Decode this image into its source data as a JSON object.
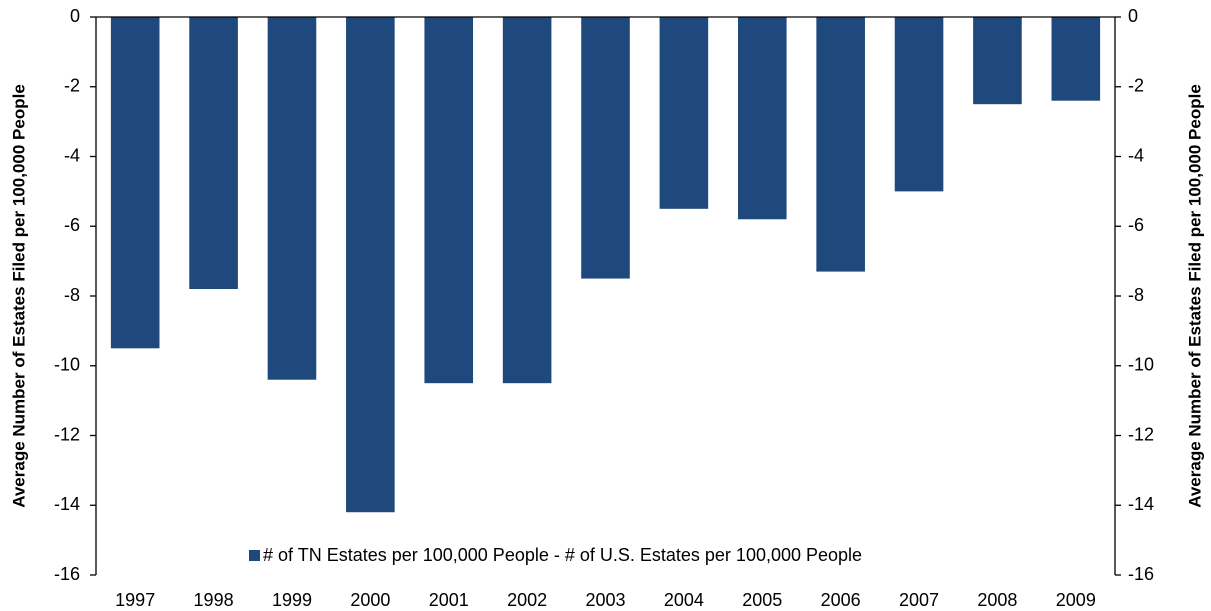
{
  "chart_data": {
    "type": "bar",
    "categories": [
      "1997",
      "1998",
      "1999",
      "2000",
      "2001",
      "2002",
      "2003",
      "2004",
      "2005",
      "2006",
      "2007",
      "2008",
      "2009"
    ],
    "series": [
      {
        "name": "# of TN Estates per 100,000 People - # of U.S. Estates per 100,000 People",
        "color": "#1f497d",
        "values": [
          -9.5,
          -7.8,
          -10.4,
          -14.2,
          -10.5,
          -10.5,
          -7.5,
          -5.5,
          -5.8,
          -7.3,
          -5.0,
          -2.5,
          -2.4
        ]
      }
    ],
    "ylabel": "Average Number of Estates Filed per 100,000 People",
    "y2label": "Average Number of Estates Filed per 100,000 People",
    "ylim": [
      -16,
      0
    ],
    "yticks": [
      0,
      -2,
      -4,
      -6,
      -8,
      -10,
      -12,
      -14,
      -16
    ],
    "y2lim": [
      -16,
      0
    ],
    "y2ticks": [
      0,
      -2,
      -4,
      -6,
      -8,
      -10,
      -12,
      -14,
      -16
    ],
    "legend": "bottom",
    "grid": false
  }
}
